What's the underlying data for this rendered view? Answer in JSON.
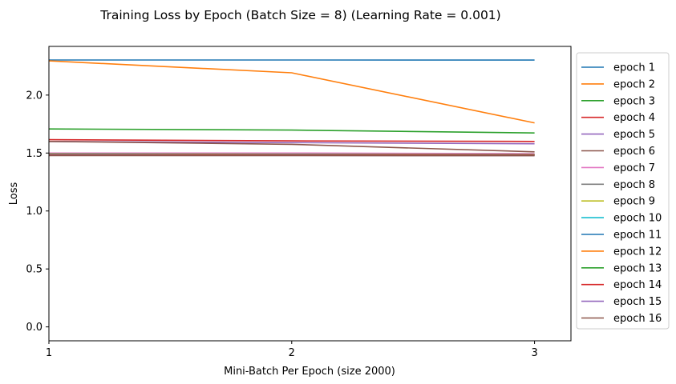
{
  "chart_data": {
    "type": "line",
    "title": "Training Loss by Epoch (Batch Size = 8) (Learning Rate = 0.001)",
    "xlabel": "Mini-Batch Per Epoch (size 2000)",
    "ylabel": "Loss",
    "x": [
      1,
      2,
      3
    ],
    "xticks": [
      "1",
      "2",
      "3"
    ],
    "yticks": [
      "0.0",
      "0.5",
      "1.0",
      "1.5",
      "2.0"
    ],
    "ylim": [
      -0.12,
      2.42
    ],
    "xlim": [
      1,
      3.15
    ],
    "grid": false,
    "legend_position": "outside-right",
    "series": [
      {
        "name": "epoch 1",
        "color": "#1f77b4",
        "values": [
          2.303,
          2.303,
          2.302
        ]
      },
      {
        "name": "epoch 2",
        "color": "#ff7f0e",
        "values": [
          2.295,
          2.192,
          1.76
        ]
      },
      {
        "name": "epoch 3",
        "color": "#2ca02c",
        "values": [
          1.708,
          1.698,
          1.673
        ]
      },
      {
        "name": "epoch 4",
        "color": "#d62728",
        "values": [
          1.615,
          1.605,
          1.6
        ]
      },
      {
        "name": "epoch 5",
        "color": "#9467bd",
        "values": [
          1.6,
          1.59,
          1.58
        ]
      },
      {
        "name": "epoch 6",
        "color": "#8c564b",
        "values": [
          1.6,
          1.575,
          1.51
        ]
      },
      {
        "name": "epoch 7",
        "color": "#e377c2",
        "values": [
          1.5,
          1.5,
          1.495
        ]
      },
      {
        "name": "epoch 8",
        "color": "#7f7f7f",
        "values": [
          1.495,
          1.49,
          1.488
        ]
      },
      {
        "name": "epoch 9",
        "color": "#bcbd22",
        "values": [
          1.49,
          1.488,
          1.487
        ]
      },
      {
        "name": "epoch 10",
        "color": "#17becf",
        "values": [
          1.488,
          1.487,
          1.486
        ]
      },
      {
        "name": "epoch 11",
        "color": "#1f77b4",
        "values": [
          1.487,
          1.486,
          1.485
        ]
      },
      {
        "name": "epoch 12",
        "color": "#ff7f0e",
        "values": [
          1.486,
          1.485,
          1.484
        ]
      },
      {
        "name": "epoch 13",
        "color": "#2ca02c",
        "values": [
          1.485,
          1.484,
          1.483
        ]
      },
      {
        "name": "epoch 14",
        "color": "#d62728",
        "values": [
          1.484,
          1.483,
          1.482
        ]
      },
      {
        "name": "epoch 15",
        "color": "#9467bd",
        "values": [
          1.48,
          1.479,
          1.478
        ]
      },
      {
        "name": "epoch 16",
        "color": "#8c564b",
        "values": [
          1.478,
          1.478,
          1.477
        ]
      }
    ]
  }
}
